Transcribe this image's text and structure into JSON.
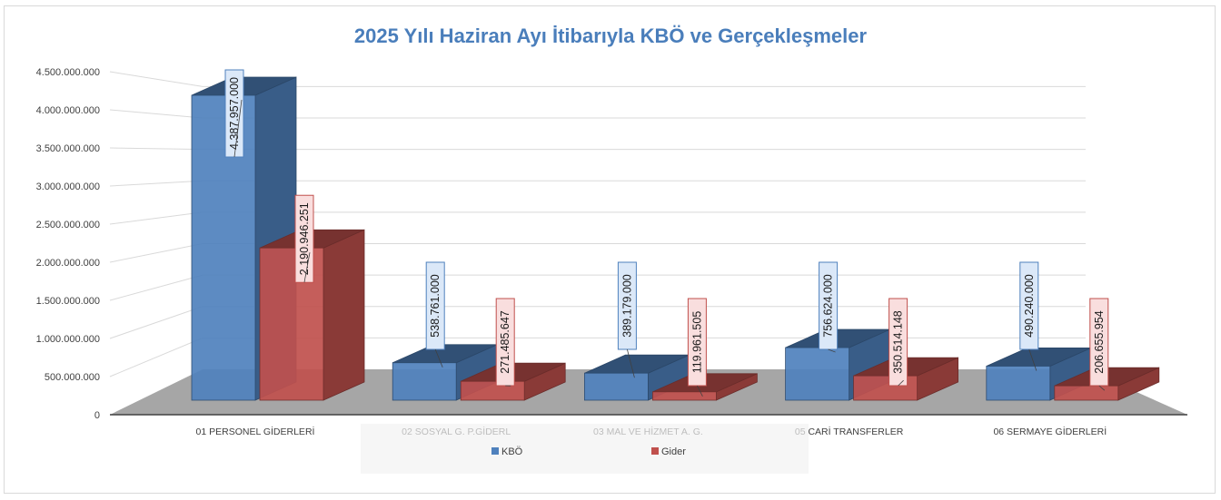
{
  "chart_data": {
    "type": "bar",
    "title": "2025 Yılı Haziran Ayı İtibarıyla KBÖ ve Gerçekleşmeler",
    "xlabel": "",
    "ylabel": "",
    "ylim": [
      0,
      4500000000
    ],
    "ytick_labels": [
      "0",
      "500.000.000",
      "1.000.000.000",
      "1.500.000.000",
      "2.000.000.000",
      "2.500.000.000",
      "3.000.000.000",
      "3.500.000.000",
      "4.000.000.000",
      "4.500.000.000"
    ],
    "categories": [
      "01 PERSONEL GİDERLERİ",
      "02 SOSYAL G. P.GİDERL",
      "03 MAL VE HİZMET A. G.",
      "05 CARİ TRANSFERLER",
      "06 SERMAYE GİDERLERİ"
    ],
    "series": [
      {
        "name": "KBÖ",
        "color": "#4f81bd",
        "values": [
          4387957000,
          538761000,
          389179000,
          756624000,
          490240000
        ],
        "labels": [
          "4.387.957.000",
          "538.761.000",
          "389.179.000",
          "756.624.000",
          "490.240.000"
        ]
      },
      {
        "name": "Gider",
        "color": "#c0504d",
        "values": [
          2190946251,
          271485647,
          119961505,
          350514148,
          206655954
        ],
        "labels": [
          "2.190.946.251",
          "271.485.647",
          "119.961.505",
          "350.514.148",
          "206.655.954"
        ]
      }
    ],
    "legend_position": "bottom",
    "grid": true
  }
}
